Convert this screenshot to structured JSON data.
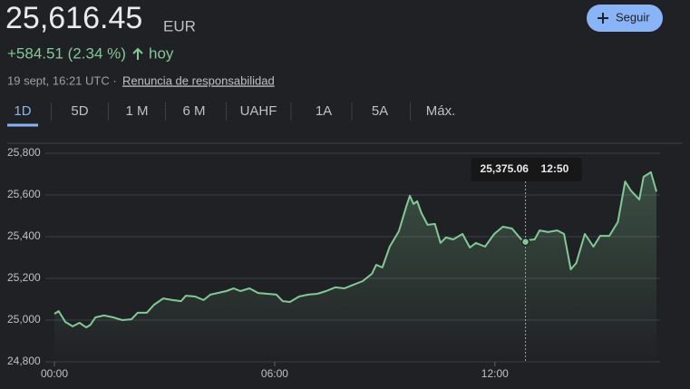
{
  "header": {
    "price": "25,616.45",
    "currency": "EUR",
    "change": "+584.51 (2.34 %)",
    "period": "hoy",
    "timestamp": "19 sept, 16:21 UTC ·",
    "disclaimer": "Renuncia de responsabilidad",
    "follow_button": "Seguir"
  },
  "tabs": [
    "1D",
    "5D",
    "1 M",
    "6 M",
    "UAHF",
    "1A",
    "5A",
    "Máx."
  ],
  "chart_data": {
    "type": "line",
    "color": "#81c995",
    "grid": true,
    "xlim": [
      0,
      990
    ],
    "xticks": [
      {
        "value": 0,
        "label": "00:00"
      },
      {
        "value": 360,
        "label": "06:00"
      },
      {
        "value": 720,
        "label": "12:00"
      }
    ],
    "ylim": [
      24800,
      25800
    ],
    "yticks": [
      {
        "value": 24800,
        "label": "24,800"
      },
      {
        "value": 25000,
        "label": "25,000"
      },
      {
        "value": 25200,
        "label": "25,200"
      },
      {
        "value": 25400,
        "label": "25,400"
      },
      {
        "value": 25600,
        "label": "25,600"
      },
      {
        "value": 25800,
        "label": "25,800"
      }
    ],
    "x": [
      0,
      7,
      18,
      30,
      41,
      52,
      59,
      67,
      81,
      96,
      111,
      126,
      136,
      151,
      163,
      178,
      193,
      207,
      215,
      230,
      244,
      255,
      267,
      281,
      293,
      304,
      319,
      333,
      348,
      363,
      373,
      385,
      400,
      415,
      430,
      444,
      459,
      474,
      489,
      504,
      519,
      526,
      536,
      548,
      563,
      575,
      581,
      587,
      593,
      600,
      610,
      622,
      631,
      640,
      652,
      667,
      679,
      689,
      704,
      719,
      733,
      748,
      763,
      773,
      785,
      793,
      807,
      822,
      833,
      844,
      853,
      867,
      881,
      892,
      907,
      921,
      933,
      942,
      956,
      963,
      975,
      984
    ],
    "values": [
      25030,
      25043,
      24991,
      24970,
      24987,
      24965,
      24978,
      25013,
      25022,
      25013,
      25000,
      25004,
      25035,
      25035,
      25074,
      25104,
      25096,
      25091,
      25117,
      25113,
      25096,
      25122,
      25130,
      25139,
      25152,
      25139,
      25152,
      25130,
      25126,
      25122,
      25091,
      25087,
      25113,
      25122,
      25126,
      25139,
      25157,
      25152,
      25170,
      25187,
      25222,
      25265,
      25252,
      25352,
      25426,
      25543,
      25596,
      25557,
      25570,
      25513,
      25457,
      25461,
      25370,
      25396,
      25387,
      25413,
      25348,
      25370,
      25352,
      25413,
      25448,
      25439,
      25387,
      25383,
      25387,
      25430,
      25422,
      25430,
      25413,
      25243,
      25274,
      25413,
      25352,
      25404,
      25404,
      25470,
      25665,
      25622,
      25578,
      25687,
      25709,
      25616
    ],
    "tooltip": {
      "x": 770,
      "value": 25375.06,
      "value_label": "25,375.06",
      "time": "12:50"
    }
  }
}
